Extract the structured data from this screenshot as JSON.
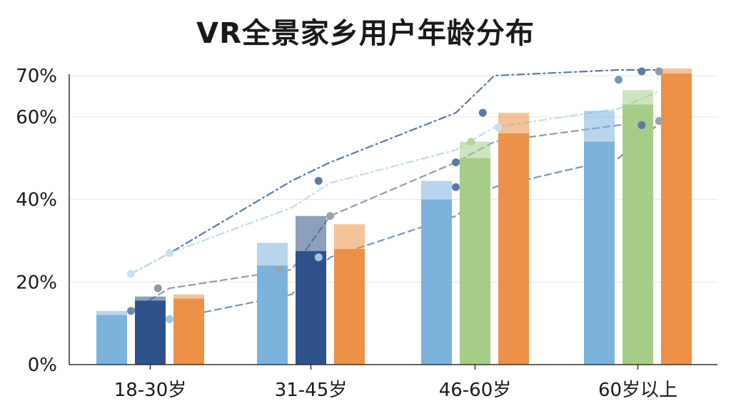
{
  "chart_data": {
    "type": "bar",
    "title": "VR全景家乡用户年龄分布",
    "categories": [
      "18-30岁",
      "31-45岁",
      "46-60岁",
      "60岁以上"
    ],
    "ylim": [
      0,
      70
    ],
    "y_ticks": [
      {
        "value": 0,
        "label": "0%"
      },
      {
        "value": 20,
        "label": "20%"
      },
      {
        "value": 40,
        "label": "40%"
      },
      {
        "value": 60,
        "label": "60%"
      },
      {
        "value": 70,
        "label": "70%"
      }
    ],
    "bars": [
      {
        "category": "18-30岁",
        "color": "#7bb3dd",
        "value": 13,
        "lower": 12
      },
      {
        "category": "18-30岁",
        "color": "#2e5289",
        "value": 16.5,
        "lower": 15.5
      },
      {
        "category": "18-30岁",
        "color": "#ec9147",
        "value": 17,
        "lower": 16
      },
      {
        "category": "31-45岁",
        "color": "#7bb3dd",
        "value": 29.5,
        "lower": 24
      },
      {
        "category": "31-45岁",
        "color": "#2e5289",
        "value": 36,
        "lower": 27.5
      },
      {
        "category": "31-45岁",
        "color": "#ec9147",
        "value": 34,
        "lower": 28
      },
      {
        "category": "46-60岁",
        "color": "#7bb3dd",
        "value": 44.5,
        "lower": 40
      },
      {
        "category": "46-60岁",
        "color": "#a5cd87",
        "value": 54,
        "lower": 50
      },
      {
        "category": "46-60岁",
        "color": "#ec9147",
        "value": 61,
        "lower": 56
      },
      {
        "category": "60岁以上",
        "color": "#7bb3dd",
        "value": 61.5,
        "lower": 54
      },
      {
        "category": "60岁以上",
        "color": "#a5cd87",
        "value": 66.5,
        "lower": 63
      },
      {
        "category": "60岁以上",
        "color": "#ec9147",
        "value": 75.5,
        "lower": 70.5
      }
    ],
    "trend_lines": [
      {
        "color": "#5b7ba6",
        "style": "dash-dot",
        "points": [
          [
            0.5,
            22
          ],
          [
            1.5,
            27
          ],
          [
            2.5,
            44.5
          ],
          [
            3.5,
            49
          ],
          [
            4.5,
            61
          ],
          [
            5.5,
            70
          ],
          [
            6.5,
            73
          ],
          [
            7.5,
            75.5
          ]
        ]
      },
      {
        "color": "#8a9db5",
        "style": "dash",
        "points": [
          [
            0.5,
            13
          ],
          [
            1.5,
            18.5
          ],
          [
            2.5,
            23
          ],
          [
            3.5,
            36
          ],
          [
            4.5,
            49
          ],
          [
            5.5,
            54
          ],
          [
            6.5,
            58
          ],
          [
            7.5,
            59
          ]
        ]
      },
      {
        "color": "#c2dcea",
        "style": "dash-dot",
        "points": [
          [
            0.5,
            22
          ],
          [
            1.5,
            27
          ],
          [
            2.5,
            38
          ],
          [
            3.5,
            44
          ],
          [
            4.5,
            52
          ],
          [
            5.5,
            57.5
          ],
          [
            6.5,
            62
          ],
          [
            7.5,
            66
          ]
        ]
      },
      {
        "color": "#7896b8",
        "style": "dash",
        "points": [
          [
            0.5,
            13
          ],
          [
            1.5,
            11
          ],
          [
            2.5,
            17
          ],
          [
            3.5,
            26
          ],
          [
            4.5,
            36
          ],
          [
            5.5,
            43
          ],
          [
            6.5,
            50
          ],
          [
            7.5,
            58
          ]
        ]
      }
    ],
    "markers": [
      {
        "series": 0,
        "x": 0.5,
        "y": 13,
        "color": "#6c89ac"
      },
      {
        "series": 0,
        "x": 1.2,
        "y": 18.5,
        "color": "#8f9aa8"
      },
      {
        "series": 0,
        "x": 1.5,
        "y": 11,
        "color": "#9fc6e3"
      },
      {
        "series": 0,
        "x": 2.2,
        "y": 23,
        "color": "#9aa3ad"
      },
      {
        "series": 0,
        "x": 0.5,
        "y": 22,
        "color": "#c9e0ee"
      },
      {
        "series": 0,
        "x": 1.5,
        "y": 27,
        "color": "#c9e0ee"
      },
      {
        "series": 0,
        "x": 3.2,
        "y": 26,
        "color": "#9fc6e3"
      },
      {
        "series": 0,
        "x": 3.5,
        "y": 36,
        "color": "#9aa3ad"
      },
      {
        "series": 0,
        "x": 3.2,
        "y": 44.5,
        "color": "#5b7ba6"
      },
      {
        "series": 0,
        "x": 4.5,
        "y": 49,
        "color": "#5b7ba6"
      },
      {
        "series": 0,
        "x": 4.5,
        "y": 43,
        "color": "#5b7ba6"
      },
      {
        "series": 0,
        "x": 4.9,
        "y": 54,
        "color": "#b6d39e"
      },
      {
        "series": 0,
        "x": 5.2,
        "y": 61,
        "color": "#5b7ba6"
      },
      {
        "series": 0,
        "x": 5.6,
        "y": 57.5,
        "color": "#c9e0ee"
      },
      {
        "series": 0,
        "x": 6.5,
        "y": 69,
        "color": "#7896b8"
      },
      {
        "series": 0,
        "x": 7.1,
        "y": 72,
        "color": "#5b7ba6"
      },
      {
        "series": 0,
        "x": 7.1,
        "y": 58,
        "color": "#5b7ba6"
      },
      {
        "series": 0,
        "x": 7.55,
        "y": 59,
        "color": "#9aa3ad"
      },
      {
        "series": 0,
        "x": 7.55,
        "y": 75.5,
        "color": "#8f9aa8"
      }
    ]
  }
}
